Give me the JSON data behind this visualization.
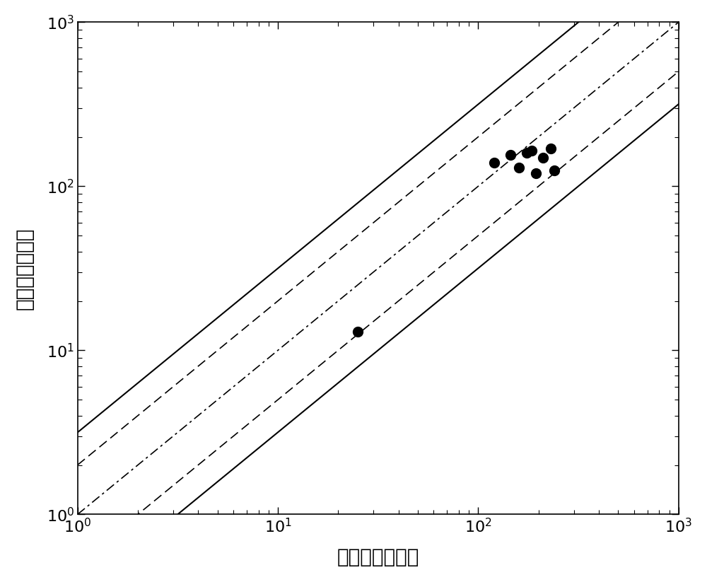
{
  "title": "",
  "xlabel": "试验寿命（周）",
  "ylabel": "预测寿命（周）",
  "xlim": [
    1,
    1000
  ],
  "ylim": [
    1,
    1000
  ],
  "data_points": [
    [
      25,
      13
    ],
    [
      120,
      140
    ],
    [
      145,
      155
    ],
    [
      160,
      130
    ],
    [
      175,
      160
    ],
    [
      185,
      165
    ],
    [
      195,
      120
    ],
    [
      210,
      150
    ],
    [
      230,
      170
    ],
    [
      240,
      125
    ]
  ],
  "factor_solid": 3.16,
  "factor_dashed": 2.0,
  "line_color": "#000000",
  "point_color": "#000000",
  "point_size": 100,
  "background_color": "#ffffff",
  "xlabel_fontsize": 20,
  "ylabel_fontsize": 20,
  "tick_fontsize": 16,
  "linewidth_solid": 1.5,
  "linewidth_dashed": 1.2,
  "linewidth_dashdot": 1.2
}
